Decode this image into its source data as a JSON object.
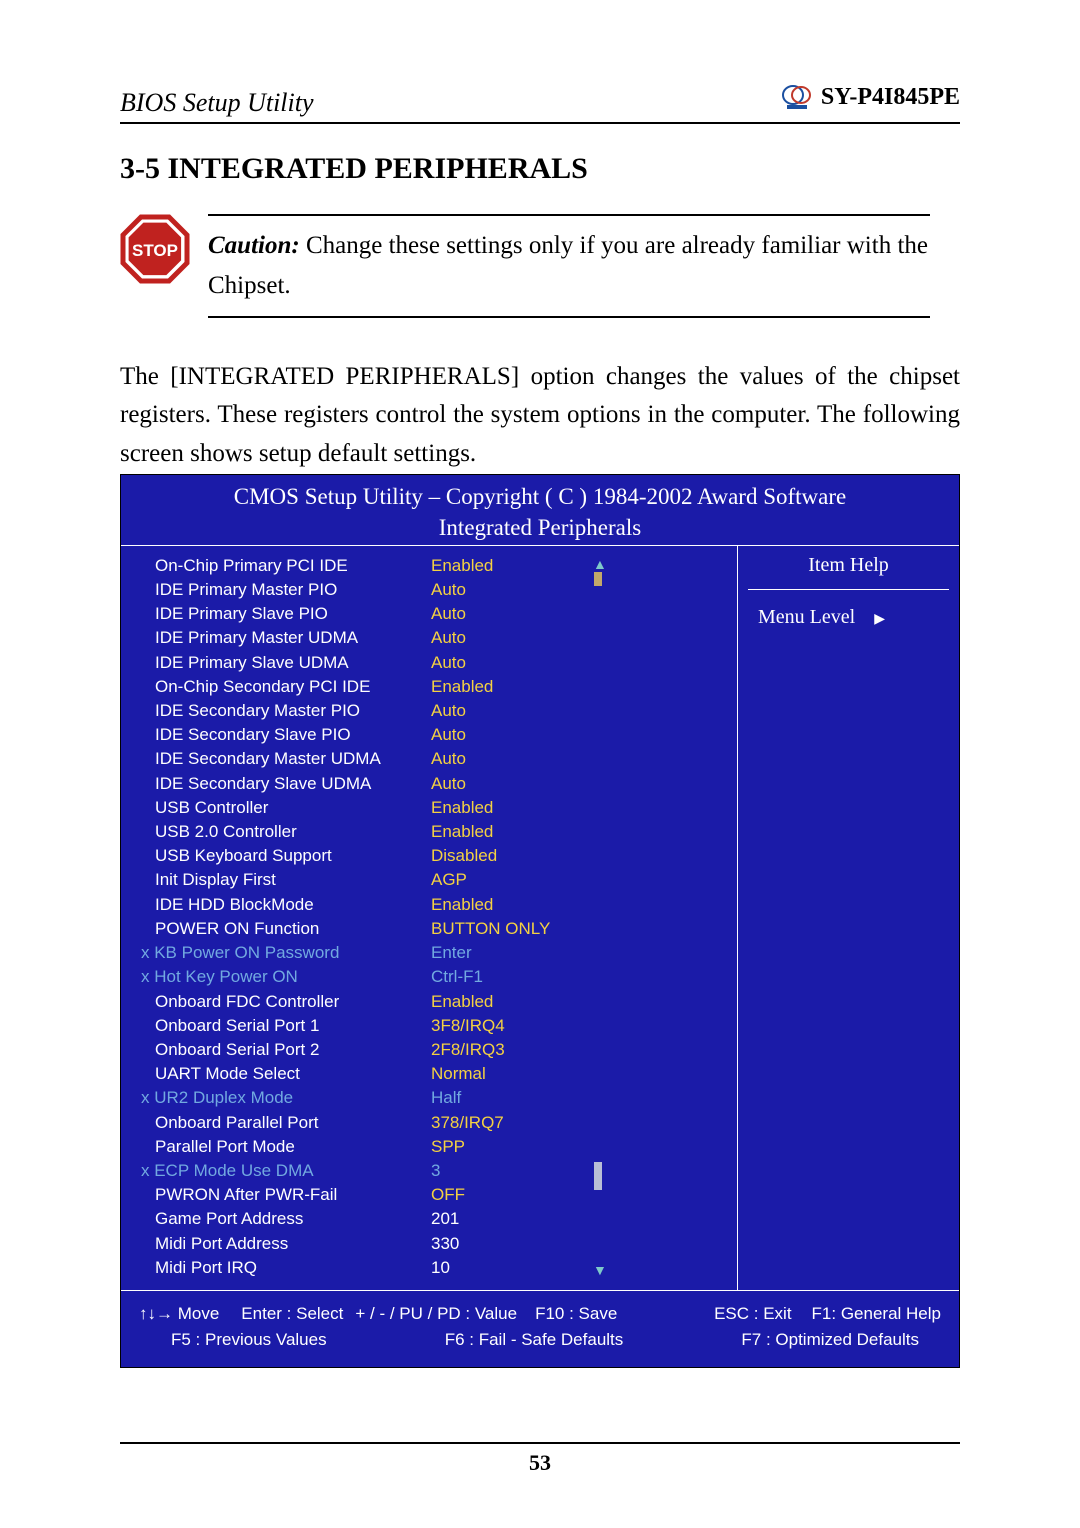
{
  "header": {
    "left": "BIOS Setup Utility",
    "right": "SY-P4I845PE"
  },
  "section_title": "3-5  INTEGRATED PERIPHERALS",
  "caution": {
    "label": "Caution:",
    "text": " Change these settings only if you are already familiar with the Chipset."
  },
  "body_paragraph": "The [INTEGRATED PERIPHERALS] option changes the values of the chipset registers. These registers control the system options in the computer. The following screen shows setup default settings.",
  "bios": {
    "title_line1": "CMOS Setup Utility – Copyright ( C ) 1984-2002 Award Software",
    "title_line2": "Integrated Peripherals",
    "help_title": "Item Help",
    "menu_level_label": "Menu Level",
    "colors": {
      "panel_bg": "#1b1ba8",
      "text_white": "#ffffff",
      "text_yellow": "#f4d142",
      "text_sub": "#72a9e0"
    },
    "rows": [
      {
        "label": "On-Chip Primary      PCI IDE",
        "value": "Enabled",
        "style": "yellow",
        "indent": true
      },
      {
        "label": "IDE Primary Master PIO",
        "value": "Auto",
        "style": "yellow",
        "indent": true
      },
      {
        "label": "IDE Primary Slave PIO",
        "value": "Auto",
        "style": "yellow",
        "indent": true
      },
      {
        "label": "IDE Primary Master UDMA",
        "value": "Auto",
        "style": "yellow",
        "indent": true
      },
      {
        "label": "IDE Primary Slave UDMA",
        "value": "Auto",
        "style": "yellow",
        "indent": true
      },
      {
        "label": "On-Chip Secondary PCI IDE",
        "value": "Enabled",
        "style": "yellow",
        "indent": true
      },
      {
        "label": "IDE Secondary Master PIO",
        "value": "Auto",
        "style": "yellow",
        "indent": true
      },
      {
        "label": "IDE Secondary Slave PIO",
        "value": "Auto",
        "style": "yellow",
        "indent": true
      },
      {
        "label": "IDE Secondary Master UDMA",
        "value": "Auto",
        "style": "yellow",
        "indent": true
      },
      {
        "label": "IDE Secondary Slave UDMA",
        "value": "Auto",
        "style": "yellow",
        "indent": true
      },
      {
        "label": "USB Controller",
        "value": "Enabled",
        "style": "yellow",
        "indent": true
      },
      {
        "label": "USB 2.0 Controller",
        "value": "Enabled",
        "style": "yellow",
        "indent": true
      },
      {
        "label": "USB Keyboard Support",
        "value": "Disabled",
        "style": "yellow",
        "indent": true
      },
      {
        "label": "Init Display First",
        "value": "AGP",
        "style": "yellow",
        "indent": true
      },
      {
        "label": "IDE HDD BlockMode",
        "value": "Enabled",
        "style": "yellow",
        "indent": true
      },
      {
        "label": "POWER ON Function",
        "value": "BUTTON ONLY",
        "style": "yellow",
        "indent": true
      },
      {
        "label": "x KB Power ON Password",
        "value": "Enter",
        "style": "sub",
        "indent": false
      },
      {
        "label": "x Hot Key Power ON",
        "value": "Ctrl-F1",
        "style": "sub",
        "indent": false
      },
      {
        "label": "Onboard FDC Controller",
        "value": "Enabled",
        "style": "yellow",
        "indent": true
      },
      {
        "label": "Onboard Serial Port 1",
        "value": "3F8/IRQ4",
        "style": "yellow",
        "indent": true
      },
      {
        "label": "Onboard Serial Port 2",
        "value": "2F8/IRQ3",
        "style": "yellow",
        "indent": true
      },
      {
        "label": "UART Mode Select",
        "value": "Normal",
        "style": "yellow",
        "indent": true
      },
      {
        "label": "x UR2 Duplex Mode",
        "value": "Half",
        "style": "sub",
        "indent": false
      },
      {
        "label": "Onboard Parallel Port",
        "value": "378/IRQ7",
        "style": "yellow",
        "indent": true
      },
      {
        "label": "Parallel Port Mode",
        "value": "SPP",
        "style": "yellow",
        "indent": true
      },
      {
        "label": "x ECP Mode Use DMA",
        "value": "3",
        "style": "sub",
        "indent": false
      },
      {
        "label": "PWRON After PWR-Fail",
        "value": "OFF",
        "style": "yellow",
        "indent": true
      },
      {
        "label": "Game Port Address",
        "value": "201",
        "style": "white",
        "indent": true
      },
      {
        "label": "Midi Port Address",
        "value": "330",
        "style": "white",
        "indent": true
      },
      {
        "label": "Midi Port IRQ",
        "value": "10",
        "style": "white",
        "indent": true
      }
    ],
    "footer": {
      "row1": [
        "↑↓→ Move",
        "Enter : Select",
        "+ / - / PU / PD : Value",
        "F10 : Save",
        "ESC : Exit",
        "F1: General Help"
      ],
      "row2": [
        "F5 : Previous Values",
        "F6 : Fail - Safe Defaults",
        "F7 : Optimized Defaults"
      ]
    }
  },
  "page_number": "53"
}
